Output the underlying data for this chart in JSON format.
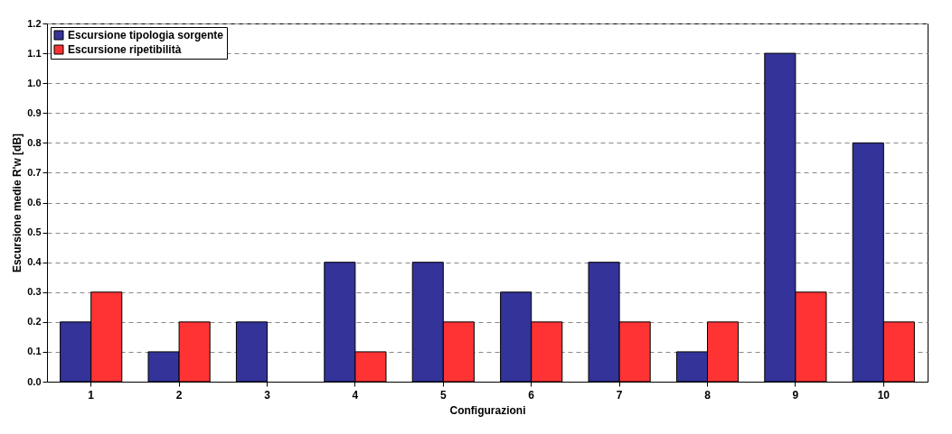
{
  "chart_data": {
    "type": "bar",
    "xlabel": "Configurazioni",
    "ylabel": "Escursione medie R'w [dB]",
    "categories": [
      "1",
      "2",
      "3",
      "4",
      "5",
      "6",
      "7",
      "8",
      "9",
      "10"
    ],
    "series": [
      {
        "name": "Escursione tipologia sorgente",
        "color": "#333399",
        "values": [
          0.2,
          0.1,
          0.2,
          0.4,
          0.4,
          0.3,
          0.4,
          0.1,
          1.1,
          0.8
        ]
      },
      {
        "name": "Escursione ripetibilità",
        "color": "#ff3333",
        "values": [
          0.3,
          0.2,
          0.0,
          0.1,
          0.2,
          0.2,
          0.2,
          0.2,
          0.3,
          0.2
        ]
      }
    ],
    "ylim": [
      0,
      1.2
    ],
    "yticks": [
      {
        "value": 0,
        "label": "0.0"
      },
      {
        "value": 0.1,
        "label": "0.1"
      },
      {
        "value": 0.2,
        "label": "0.2"
      },
      {
        "value": 0.3,
        "label": "0.3"
      },
      {
        "value": 0.4,
        "label": "0.4"
      },
      {
        "value": 0.5,
        "label": "0.5"
      },
      {
        "value": 0.6,
        "label": "0.6"
      },
      {
        "value": 0.7,
        "label": "0.7"
      },
      {
        "value": 0.8,
        "label": "0.8"
      },
      {
        "value": 0.9,
        "label": "0.9"
      },
      {
        "value": 1.0,
        "label": "1.0"
      },
      {
        "value": 1.1,
        "label": "1.1"
      },
      {
        "value": 1.2,
        "label": "1.2"
      }
    ],
    "grid": "y",
    "legend": "top left"
  }
}
